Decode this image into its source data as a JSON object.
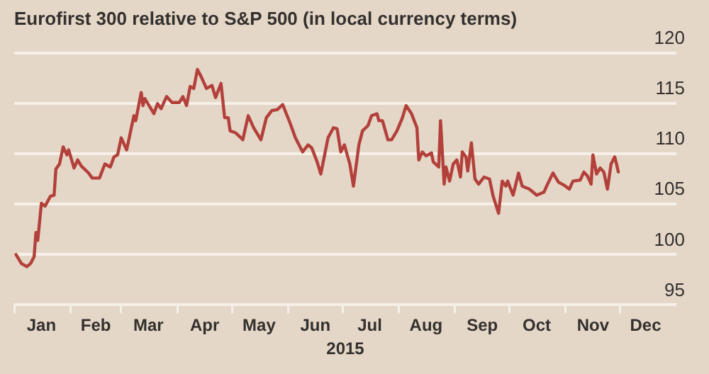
{
  "chart_data": {
    "type": "line",
    "title": "Eurofirst 300 relative to S&P 500 (in local currency terms)",
    "xlabel": "2015",
    "x": [
      "2015-01-02",
      "2015-01-05",
      "2015-01-08",
      "2015-01-10",
      "2015-01-12",
      "2015-01-13",
      "2015-01-14",
      "2015-01-16",
      "2015-01-18",
      "2015-01-21",
      "2015-01-23",
      "2015-01-24",
      "2015-01-26",
      "2015-01-28",
      "2015-01-30",
      "2015-01-31",
      "2015-02-03",
      "2015-02-05",
      "2015-02-07",
      "2015-02-11",
      "2015-02-13",
      "2015-02-17",
      "2015-02-20",
      "2015-02-23",
      "2015-02-25",
      "2015-02-27",
      "2015-03-01",
      "2015-03-04",
      "2015-03-08",
      "2015-03-09",
      "2015-03-12",
      "2015-03-13",
      "2015-03-14",
      "2015-03-19",
      "2015-03-21",
      "2015-03-23",
      "2015-03-26",
      "2015-03-29",
      "2015-04-02",
      "2015-04-04",
      "2015-04-06",
      "2015-04-08",
      "2015-04-10",
      "2015-04-12",
      "2015-04-14",
      "2015-04-17",
      "2015-04-20",
      "2015-04-22",
      "2015-04-25",
      "2015-04-27",
      "2015-04-29",
      "2015-04-30",
      "2015-05-03",
      "2015-05-06",
      "2015-05-07",
      "2015-05-10",
      "2015-05-13",
      "2015-05-17",
      "2015-05-20",
      "2015-05-23",
      "2015-05-26",
      "2015-05-29",
      "2015-05-31",
      "2015-06-02",
      "2015-06-05",
      "2015-06-09",
      "2015-06-12",
      "2015-06-14",
      "2015-06-17",
      "2015-06-19",
      "2015-06-23",
      "2015-06-26",
      "2015-06-28",
      "2015-06-30",
      "2015-07-02",
      "2015-07-05",
      "2015-07-07",
      "2015-07-10",
      "2015-07-12",
      "2015-07-15",
      "2015-07-17",
      "2015-07-20",
      "2015-07-21",
      "2015-07-23",
      "2015-07-26",
      "2015-07-28",
      "2015-07-31",
      "2015-08-03",
      "2015-08-05",
      "2015-08-08",
      "2015-08-11",
      "2015-08-12",
      "2015-08-14",
      "2015-08-16",
      "2015-08-19",
      "2015-08-20",
      "2015-08-23",
      "2015-08-24",
      "2015-08-26",
      "2015-08-27",
      "2015-08-29",
      "2015-08-31",
      "2015-09-02",
      "2015-09-04",
      "2015-09-05",
      "2015-09-07",
      "2015-09-08",
      "2015-09-10",
      "2015-09-12",
      "2015-09-14",
      "2015-09-17",
      "2015-09-20",
      "2015-09-22",
      "2015-09-25",
      "2015-09-27",
      "2015-09-29",
      "2015-09-30",
      "2015-10-03",
      "2015-10-06",
      "2015-10-08",
      "2015-10-12",
      "2015-10-16",
      "2015-10-20",
      "2015-10-22",
      "2015-10-25",
      "2015-10-28",
      "2015-10-31",
      "2015-11-03",
      "2015-11-05",
      "2015-11-09",
      "2015-11-11",
      "2015-11-13",
      "2015-11-15",
      "2015-11-16",
      "2015-11-18",
      "2015-11-20",
      "2015-11-22",
      "2015-11-24",
      "2015-11-26",
      "2015-11-28",
      "2015-11-29",
      "2015-11-30"
    ],
    "series": [
      {
        "color": "#b3403a",
        "values": [
          100.0,
          99.1,
          98.8,
          99.1,
          99.8,
          102.2,
          101.4,
          105.1,
          104.8,
          105.8,
          105.9,
          108.5,
          109.0,
          110.7,
          109.9,
          110.4,
          108.6,
          109.4,
          108.8,
          108.1,
          107.6,
          107.6,
          109.0,
          108.7,
          109.7,
          109.9,
          111.6,
          110.4,
          113.8,
          113.3,
          116.1,
          114.8,
          115.5,
          114.0,
          115.0,
          114.5,
          115.7,
          115.1,
          115.1,
          115.7,
          114.8,
          116.7,
          116.5,
          118.4,
          117.7,
          116.5,
          116.8,
          115.6,
          117.0,
          113.6,
          113.6,
          112.3,
          112.1,
          111.6,
          111.4,
          113.8,
          112.6,
          111.4,
          113.6,
          114.3,
          114.4,
          114.9,
          114.0,
          113.1,
          111.6,
          110.2,
          110.9,
          110.6,
          109.2,
          108.0,
          111.6,
          112.6,
          112.5,
          110.2,
          110.9,
          109.0,
          106.8,
          110.9,
          112.3,
          112.8,
          113.8,
          114.0,
          113.3,
          113.3,
          111.4,
          111.4,
          112.3,
          113.6,
          114.8,
          114.0,
          112.6,
          109.4,
          110.2,
          109.8,
          110.1,
          109.2,
          108.7,
          113.3,
          107.0,
          108.7,
          107.3,
          109.0,
          109.4,
          107.7,
          110.2,
          109.7,
          108.3,
          111.1,
          107.5,
          107.0,
          107.7,
          107.5,
          105.8,
          104.1,
          107.3,
          106.8,
          107.3,
          105.9,
          108.1,
          106.8,
          106.5,
          105.9,
          106.2,
          107.0,
          108.1,
          107.2,
          106.9,
          106.5,
          107.3,
          107.4,
          108.2,
          107.8,
          107.0,
          109.9,
          108.0,
          108.6,
          108.2,
          106.5,
          109.0,
          109.7,
          109.0,
          108.2
        ]
      }
    ],
    "xlim": [
      "2015-01-01",
      "2016-01-01"
    ],
    "xticks": [
      {
        "value": "2015-01-01",
        "label": null
      },
      {
        "value": "2015-01-16",
        "label": "Jan"
      },
      {
        "value": "2015-02-01",
        "label": null
      },
      {
        "value": "2015-02-15",
        "label": "Feb"
      },
      {
        "value": "2015-03-01",
        "label": null
      },
      {
        "value": "2015-03-16",
        "label": "Mar"
      },
      {
        "value": "2015-04-01",
        "label": null
      },
      {
        "value": "2015-04-16",
        "label": "Apr"
      },
      {
        "value": "2015-05-01",
        "label": null
      },
      {
        "value": "2015-05-16",
        "label": "May"
      },
      {
        "value": "2015-06-01",
        "label": null
      },
      {
        "value": "2015-06-16",
        "label": "Jun"
      },
      {
        "value": "2015-07-01",
        "label": null
      },
      {
        "value": "2015-07-16",
        "label": "Jul"
      },
      {
        "value": "2015-08-01",
        "label": null
      },
      {
        "value": "2015-08-16",
        "label": "Aug"
      },
      {
        "value": "2015-09-01",
        "label": null
      },
      {
        "value": "2015-09-16",
        "label": "Sep"
      },
      {
        "value": "2015-10-01",
        "label": null
      },
      {
        "value": "2015-10-16",
        "label": "Oct"
      },
      {
        "value": "2015-11-01",
        "label": null
      },
      {
        "value": "2015-11-16",
        "label": "Nov"
      },
      {
        "value": "2015-12-01",
        "label": null
      },
      {
        "value": "2015-12-15",
        "label": "Dec"
      }
    ],
    "ylim": [
      95,
      120
    ],
    "yticks": [
      95,
      100,
      105,
      110,
      115,
      120
    ],
    "grid": "y",
    "legend": false
  }
}
